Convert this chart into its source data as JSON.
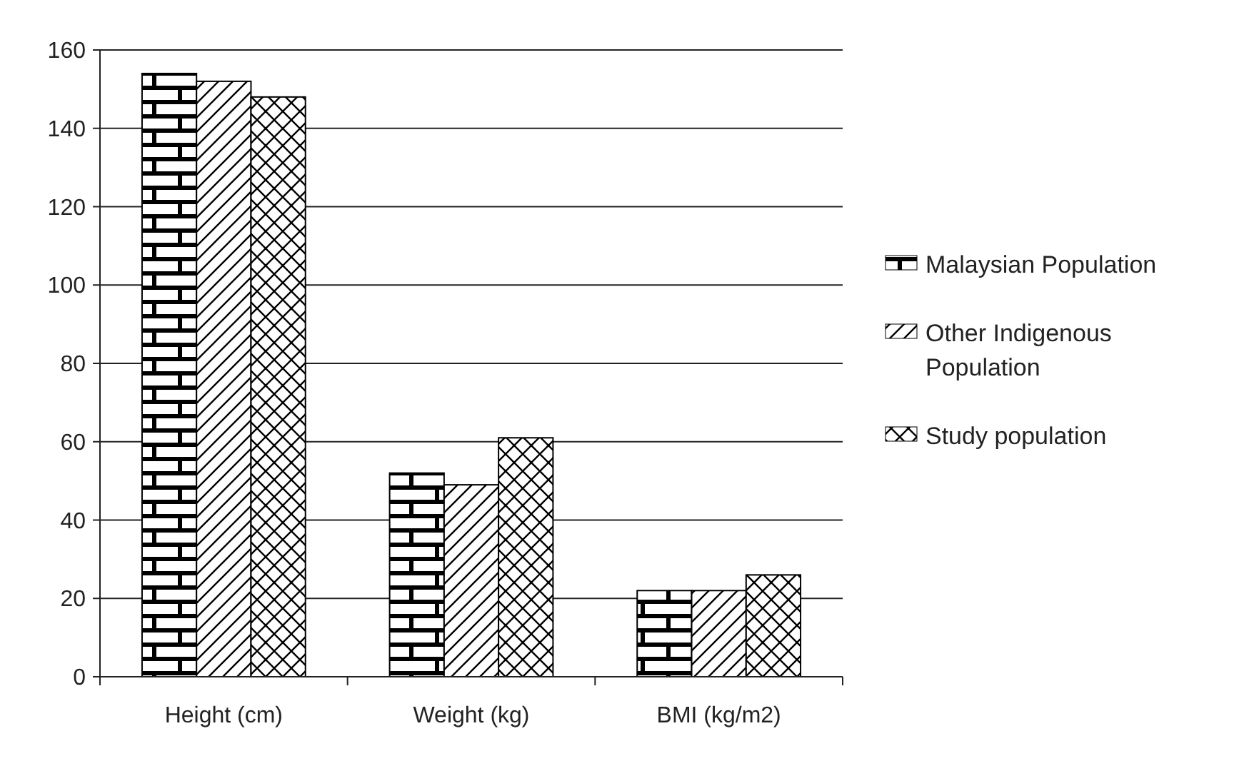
{
  "chart_data": {
    "type": "bar",
    "categories": [
      "Height (cm)",
      "Weight (kg)",
      "BMI (kg/m2)"
    ],
    "series": [
      {
        "name": "Malaysian Population",
        "color": "#000000",
        "values": [
          154,
          52,
          22
        ]
      },
      {
        "name": "Other Indigenous Population",
        "color": "#000000",
        "values": [
          152,
          49,
          22
        ]
      },
      {
        "name": "Study population",
        "color": "#000000",
        "values": [
          148,
          61,
          26
        ]
      }
    ],
    "ylim": [
      0,
      160
    ],
    "yticks": [
      0,
      20,
      40,
      60,
      80,
      100,
      120,
      140,
      160
    ],
    "grid": "y",
    "legend": "right"
  }
}
